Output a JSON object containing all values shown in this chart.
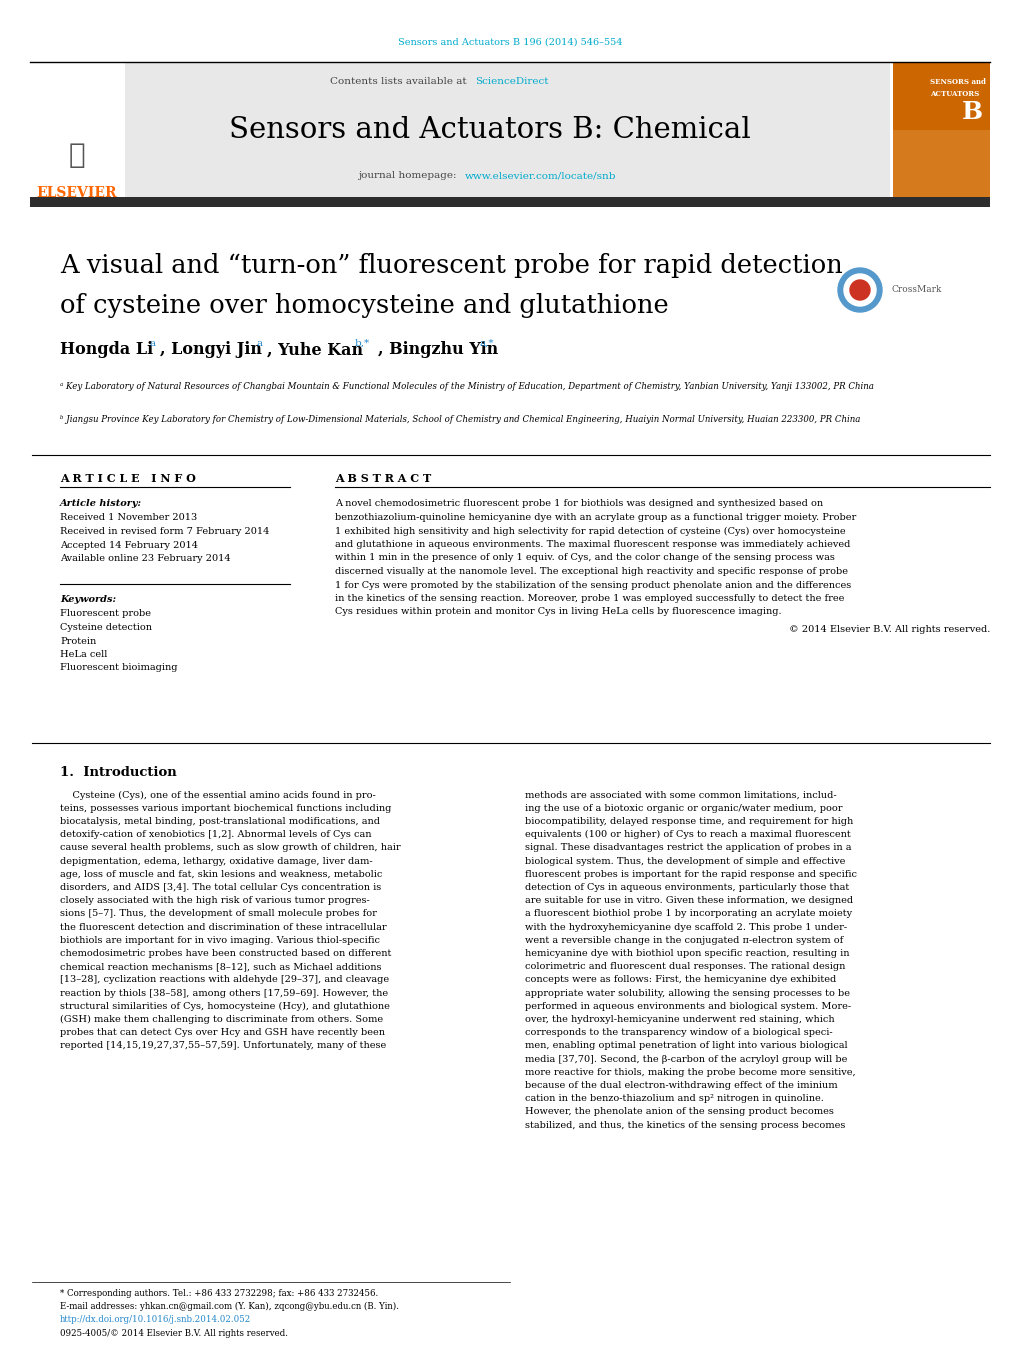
{
  "background_color": "#ffffff",
  "header_citation": "Sensors and Actuators B 196 (2014) 546–554",
  "header_citation_color": "#00aacc",
  "journal_banner_bg": "#e8e8e8",
  "journal_banner_text": "Contents lists available at",
  "sciencedirect_text": "ScienceDirect",
  "sciencedirect_color": "#00aacc",
  "journal_name": "Sensors and Actuators B: Chemical",
  "journal_homepage_label": "journal homepage:",
  "journal_url": "www.elsevier.com/locate/snb",
  "journal_url_color": "#00aacc",
  "dark_banner_color": "#2d2d2d",
  "title_line1": "A visual and “turn-on” fluorescent probe for rapid detection",
  "title_line2": "of cysteine over homocysteine and glutathione",
  "title_color": "#000000",
  "affil_a": "ᵃ Key Laboratory of Natural Resources of Changbai Mountain & Functional Molecules of the Ministry of Education, Department of Chemistry, Yanbian University, Yanji 133002, PR China",
  "affil_b": "ᵇ Jiangsu Province Key Laboratory for Chemistry of Low-Dimensional Materials, School of Chemistry and Chemical Engineering, Huaiyin Normal University, Huaian 223300, PR China",
  "article_info_title": "A R T I C L E   I N F O",
  "article_history_title": "Article history:",
  "dates": [
    "Received 1 November 2013",
    "Received in revised form 7 February 2014",
    "Accepted 14 February 2014",
    "Available online 23 February 2014"
  ],
  "keywords_title": "Keywords:",
  "keywords": [
    "Fluorescent probe",
    "Cysteine detection",
    "Protein",
    "HeLa cell",
    "Fluorescent bioimaging"
  ],
  "abstract_title": "A B S T R A C T",
  "copyright_text": "© 2014 Elsevier B.V. All rights reserved.",
  "intro_heading": "1.  Introduction",
  "footer_text": "* Corresponding authors. Tel.: +86 433 2732298; fax: +86 433 2732456.",
  "footer_email": "E-mail addresses: yhkan.cn@gmail.com (Y. Kan), zqcong@ybu.edu.cn (B. Yin).",
  "footer_doi": "http://dx.doi.org/10.1016/j.snb.2014.02.052",
  "footer_issn": "0925-4005/© 2014 Elsevier B.V. All rights reserved.",
  "abstract_lines": [
    "A novel chemodosimetric fluorescent probe 1 for biothiols was designed and synthesized based on",
    "benzothiazolium-quinoline hemicyanine dye with an acrylate group as a functional trigger moiety. Prober",
    "1 exhibited high sensitivity and high selectivity for rapid detection of cysteine (Cys) over homocysteine",
    "and glutathione in aqueous environments. The maximal fluorescent response was immediately achieved",
    "within 1 min in the presence of only 1 equiv. of Cys, and the color change of the sensing process was",
    "discerned visually at the nanomole level. The exceptional high reactivity and specific response of probe",
    "1 for Cys were promoted by the stabilization of the sensing product phenolate anion and the differences",
    "in the kinetics of the sensing reaction. Moreover, probe 1 was employed successfully to detect the free",
    "Cys residues within protein and monitor Cys in living HeLa cells by fluorescence imaging."
  ],
  "intro_col1_lines": [
    "    Cysteine (Cys), one of the essential amino acids found in pro-",
    "teins, possesses various important biochemical functions including",
    "biocatalysis, metal binding, post-translational modifications, and",
    "detoxify-cation of xenobiotics [1,2]. Abnormal levels of Cys can",
    "cause several health problems, such as slow growth of children, hair",
    "depigmentation, edema, lethargy, oxidative damage, liver dam-",
    "age, loss of muscle and fat, skin lesions and weakness, metabolic",
    "disorders, and AIDS [3,4]. The total cellular Cys concentration is",
    "closely associated with the high risk of various tumor progres-",
    "sions [5–7]. Thus, the development of small molecule probes for",
    "the fluorescent detection and discrimination of these intracellular",
    "biothiols are important for in vivo imaging. Various thiol-specific",
    "chemodosimetric probes have been constructed based on different",
    "chemical reaction mechanisms [8–12], such as Michael additions",
    "[13–28], cyclization reactions with aldehyde [29–37], and cleavage",
    "reaction by thiols [38–58], among others [17,59–69]. However, the",
    "structural similarities of Cys, homocysteine (Hcy), and glutathione",
    "(GSH) make them challenging to discriminate from others. Some",
    "probes that can detect Cys over Hcy and GSH have recently been",
    "reported [14,15,19,27,37,55–57,59]. Unfortunately, many of these"
  ],
  "intro_col2_lines": [
    "methods are associated with some common limitations, includ-",
    "ing the use of a biotoxic organic or organic/water medium, poor",
    "biocompatibility, delayed response time, and requirement for high",
    "equivalents (100 or higher) of Cys to reach a maximal fluorescent",
    "signal. These disadvantages restrict the application of probes in a",
    "biological system. Thus, the development of simple and effective",
    "fluorescent probes is important for the rapid response and specific",
    "detection of Cys in aqueous environments, particularly those that",
    "are suitable for use in vitro. Given these information, we designed",
    "a fluorescent biothiol probe 1 by incorporating an acrylate moiety",
    "with the hydroxyhemicyanine dye scaffold 2. This probe 1 under-",
    "went a reversible change in the conjugated π-electron system of",
    "hemicyanine dye with biothiol upon specific reaction, resulting in",
    "colorimetric and fluorescent dual responses. The rational design",
    "concepts were as follows: First, the hemicyanine dye exhibited",
    "appropriate water solubility, allowing the sensing processes to be",
    "performed in aqueous environments and biological system. More-",
    "over, the hydroxyl-hemicyanine underwent red staining, which",
    "corresponds to the transparency window of a biological speci-",
    "men, enabling optimal penetration of light into various biological",
    "media [37,70]. Second, the β-carbon of the acryloyl group will be",
    "more reactive for thiols, making the probe become more sensitive,",
    "because of the dual electron-withdrawing effect of the iminium",
    "cation in the benzo-thiazolium and sp² nitrogen in quinoline.",
    "However, the phenolate anion of the sensing product becomes",
    "stabilized, and thus, the kinetics of the sensing process becomes"
  ]
}
